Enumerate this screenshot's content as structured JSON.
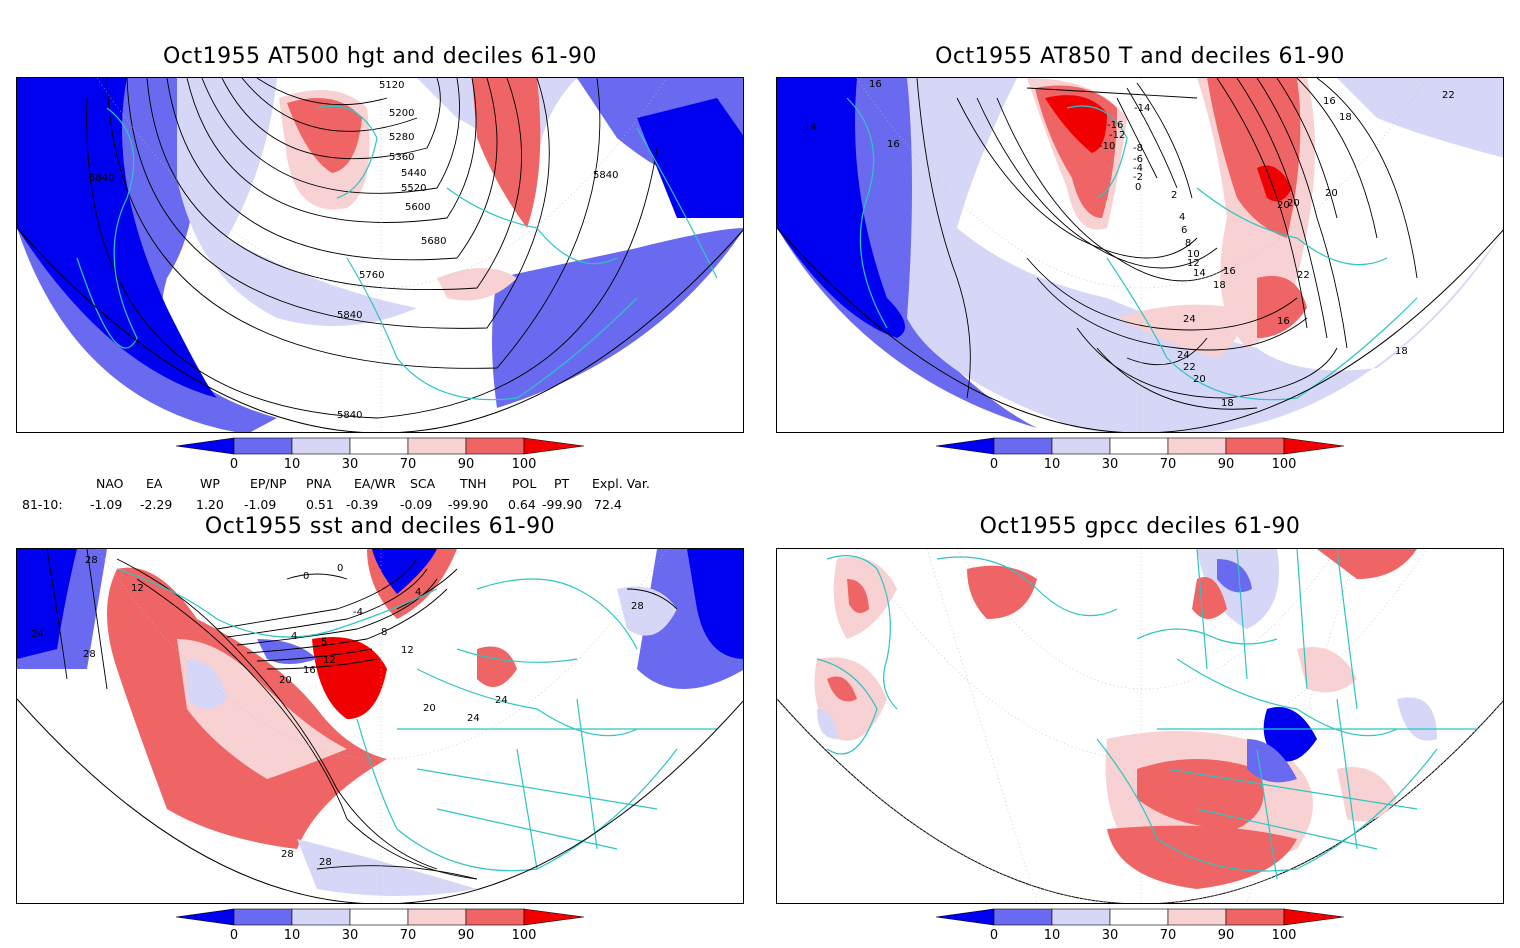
{
  "panels": [
    {
      "title": "Oct1955 AT500 hgt and deciles 61-90",
      "contour_labels": [
        "5120",
        "5200",
        "5280",
        "5360",
        "5440",
        "5520",
        "5600",
        "5680",
        "5760",
        "5840",
        "5840",
        "5840",
        "5840"
      ]
    },
    {
      "title": "Oct1955 AT850 T and deciles 61-90",
      "contour_labels": [
        "16",
        "14",
        "16",
        "-14",
        "-16",
        "-12",
        "-10",
        "-8",
        "-6",
        "-4",
        "-2",
        "0",
        "2",
        "4",
        "6",
        "8",
        "10",
        "12",
        "14",
        "16",
        "18",
        "20",
        "22",
        "24",
        "24",
        "22",
        "20",
        "18",
        "16",
        "18",
        "20",
        "20",
        "22",
        "18",
        "16"
      ]
    },
    {
      "title": "Oct1955 sst and deciles 61-90",
      "contour_labels": [
        "28",
        "24",
        "28",
        "12",
        "0",
        "0",
        "4",
        "-4",
        "8",
        "4",
        "5",
        "12",
        "16",
        "20",
        "12",
        "20",
        "24",
        "24",
        "28",
        "28",
        "28"
      ]
    },
    {
      "title": "Oct1955 gpcc deciles 61-90",
      "contour_labels": []
    }
  ],
  "colorbar": {
    "ticks": [
      "0",
      "10",
      "30",
      "70",
      "90",
      "100"
    ],
    "colors": [
      "#0000f0",
      "#6a6af0",
      "#d6d6f6",
      "#ffffff",
      "#f8d2d2",
      "#ef6464",
      "#f00000"
    ]
  },
  "indices": {
    "row_label": "81-10:",
    "columns": [
      {
        "name": "NAO",
        "value": "-1.09"
      },
      {
        "name": "EA",
        "value": "-2.29"
      },
      {
        "name": "WP",
        "value": "1.20"
      },
      {
        "name": "EP/NP",
        "value": "-1.09"
      },
      {
        "name": "PNA",
        "value": "0.51"
      },
      {
        "name": "EA/WR",
        "value": "-0.39"
      },
      {
        "name": "SCA",
        "value": "-0.09"
      },
      {
        "name": "TNH",
        "value": "-99.90"
      },
      {
        "name": "POL",
        "value": "0.64"
      },
      {
        "name": "PT",
        "value": "-99.90"
      },
      {
        "name": "Expl. Var.",
        "value": "72.4"
      }
    ]
  }
}
